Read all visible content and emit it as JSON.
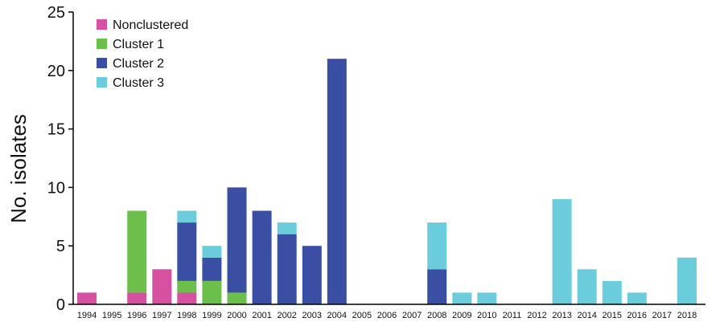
{
  "chart_data": {
    "type": "bar",
    "stacked": true,
    "categories": [
      "1994",
      "1995",
      "1996",
      "1997",
      "1998",
      "1999",
      "2000",
      "2001",
      "2002",
      "2003",
      "2004",
      "2005",
      "2006",
      "2007",
      "2008",
      "2009",
      "2010",
      "2011",
      "2012",
      "2013",
      "2014",
      "2015",
      "2016",
      "2017",
      "2018"
    ],
    "series": [
      {
        "name": "Nonclustered",
        "color": "#d6519f",
        "values": [
          1,
          0,
          1,
          3,
          1,
          0,
          0,
          0,
          0,
          0,
          0,
          0,
          0,
          0,
          0,
          0,
          0,
          0,
          0,
          0,
          0,
          0,
          0,
          0,
          0
        ]
      },
      {
        "name": "Cluster 1",
        "color": "#6cbf4a",
        "values": [
          0,
          0,
          7,
          0,
          1,
          2,
          1,
          0,
          0,
          0,
          0,
          0,
          0,
          0,
          0,
          0,
          0,
          0,
          0,
          0,
          0,
          0,
          0,
          0,
          0
        ]
      },
      {
        "name": "Cluster 2",
        "color": "#3a4fa3",
        "values": [
          0,
          0,
          0,
          0,
          5,
          2,
          9,
          8,
          6,
          5,
          21,
          0,
          0,
          0,
          3,
          0,
          0,
          0,
          0,
          0,
          0,
          0,
          0,
          0,
          0
        ]
      },
      {
        "name": "Cluster 3",
        "color": "#6bcddc",
        "values": [
          0,
          0,
          0,
          0,
          1,
          1,
          0,
          0,
          1,
          0,
          0,
          0,
          0,
          0,
          4,
          1,
          1,
          0,
          0,
          9,
          3,
          2,
          1,
          0,
          4
        ]
      }
    ],
    "title": "",
    "xlabel": "",
    "ylabel": "No. isolates",
    "ylim": [
      0,
      25
    ],
    "yticks": [
      0,
      5,
      10,
      15,
      20,
      25
    ],
    "grid": false,
    "legend_position": "top-left"
  }
}
